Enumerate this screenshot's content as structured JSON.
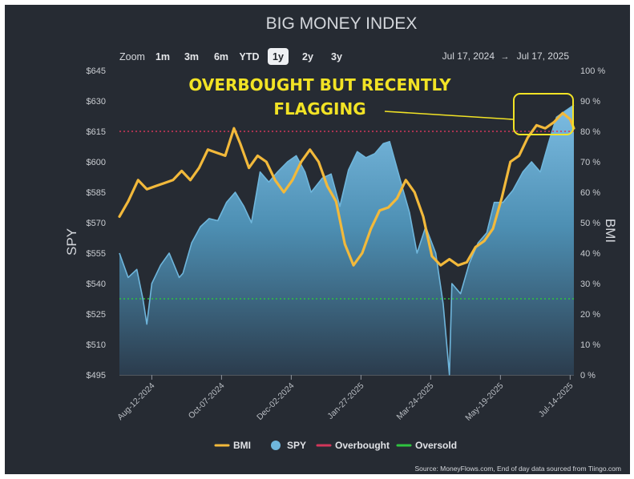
{
  "chart_data": {
    "type": "line",
    "title": "BIG MONEY INDEX",
    "zoom": {
      "label": "Zoom",
      "options": [
        "1m",
        "3m",
        "6m",
        "YTD",
        "1y",
        "2y",
        "3y"
      ],
      "selected": "1y"
    },
    "date_range": {
      "from": "Jul 17, 2024",
      "separator": "→",
      "to": "Jul 17, 2025"
    },
    "y_left": {
      "label": "SPY",
      "range": [
        495,
        645
      ],
      "ticks": [
        645,
        630,
        615,
        600,
        585,
        570,
        555,
        540,
        525,
        510,
        495
      ],
      "tick_labels": [
        "$645",
        "$630",
        "$615",
        "$600",
        "$585",
        "$570",
        "$555",
        "$540",
        "$525",
        "$510",
        "$495"
      ]
    },
    "y_right": {
      "label": "BMI",
      "range": [
        0,
        100
      ],
      "ticks": [
        100,
        90,
        80,
        70,
        60,
        50,
        40,
        30,
        20,
        10,
        0
      ],
      "tick_labels": [
        "100 %",
        "90 %",
        "80 %",
        "70 %",
        "60 %",
        "50 %",
        "40 %",
        "30 %",
        "20 %",
        "10 %",
        "0 %"
      ]
    },
    "x_ticks": [
      "Aug-12-2024",
      "Oct-07-2024",
      "Dec-02-2024",
      "Jan-27-2025",
      "Mar-24-2025",
      "May-19-2025",
      "Jul-14-2025"
    ],
    "thresholds": {
      "overbought": {
        "label": "Overbought",
        "value": 80,
        "color": "#d2365a"
      },
      "oversold": {
        "label": "Oversold",
        "value": 25,
        "color": "#2fc43f"
      }
    },
    "series": [
      {
        "name": "BMI",
        "axis": "right",
        "color": "#f2b93b",
        "x": [
          "2024-07-17",
          "2024-07-24",
          "2024-08-01",
          "2024-08-08",
          "2024-08-15",
          "2024-08-22",
          "2024-08-29",
          "2024-09-05",
          "2024-09-12",
          "2024-09-19",
          "2024-09-26",
          "2024-10-03",
          "2024-10-10",
          "2024-10-17",
          "2024-10-22",
          "2024-10-29",
          "2024-11-05",
          "2024-11-12",
          "2024-11-19",
          "2024-11-26",
          "2024-12-03",
          "2024-12-10",
          "2024-12-17",
          "2024-12-24",
          "2024-12-31",
          "2025-01-07",
          "2025-01-14",
          "2025-01-21",
          "2025-01-28",
          "2025-02-04",
          "2025-02-11",
          "2025-02-18",
          "2025-02-25",
          "2025-03-04",
          "2025-03-11",
          "2025-03-18",
          "2025-03-25",
          "2025-04-01",
          "2025-04-08",
          "2025-04-15",
          "2025-04-22",
          "2025-04-29",
          "2025-05-06",
          "2025-05-13",
          "2025-05-20",
          "2025-05-27",
          "2025-06-03",
          "2025-06-10",
          "2025-06-17",
          "2025-06-24",
          "2025-07-01",
          "2025-07-08",
          "2025-07-14",
          "2025-07-17"
        ],
        "values": [
          52,
          57,
          64,
          61,
          62,
          63,
          64,
          67,
          64,
          68,
          74,
          73,
          72,
          81,
          76,
          68,
          72,
          70,
          64,
          60,
          64,
          70,
          74,
          70,
          62,
          57,
          43,
          36,
          40,
          48,
          54,
          55,
          58,
          64,
          60,
          52,
          39,
          36,
          38,
          36,
          37,
          42,
          44,
          48,
          58,
          70,
          72,
          78,
          82,
          81,
          83,
          86,
          84,
          81
        ]
      },
      {
        "name": "SPY",
        "axis": "left",
        "color": "#6fb6dc",
        "x": [
          "2024-07-17",
          "2024-07-24",
          "2024-07-31",
          "2024-08-05",
          "2024-08-08",
          "2024-08-12",
          "2024-08-19",
          "2024-08-26",
          "2024-09-03",
          "2024-09-06",
          "2024-09-13",
          "2024-09-20",
          "2024-09-27",
          "2024-10-04",
          "2024-10-11",
          "2024-10-18",
          "2024-10-25",
          "2024-10-31",
          "2024-11-07",
          "2024-11-14",
          "2024-11-21",
          "2024-11-29",
          "2024-12-06",
          "2024-12-13",
          "2024-12-18",
          "2024-12-27",
          "2025-01-03",
          "2025-01-10",
          "2025-01-17",
          "2025-01-24",
          "2025-01-31",
          "2025-02-07",
          "2025-02-14",
          "2025-02-19",
          "2025-02-28",
          "2025-03-07",
          "2025-03-13",
          "2025-03-20",
          "2025-03-28",
          "2025-04-03",
          "2025-04-08",
          "2025-04-10",
          "2025-04-17",
          "2025-04-24",
          "2025-05-01",
          "2025-05-08",
          "2025-05-14",
          "2025-05-21",
          "2025-05-29",
          "2025-06-06",
          "2025-06-13",
          "2025-06-20",
          "2025-06-27",
          "2025-07-03",
          "2025-07-10",
          "2025-07-17"
        ],
        "values": [
          555,
          543,
          547,
          532,
          520,
          540,
          549,
          555,
          543,
          545,
          560,
          568,
          572,
          571,
          580,
          585,
          578,
          570,
          595,
          590,
          595,
          600,
          603,
          595,
          585,
          592,
          594,
          578,
          596,
          605,
          602,
          604,
          609,
          610,
          590,
          575,
          555,
          568,
          555,
          530,
          495,
          540,
          535,
          550,
          560,
          565,
          580,
          580,
          586,
          595,
          600,
          595,
          610,
          622,
          625,
          628
        ]
      }
    ],
    "annotation": {
      "text_line1": "OVERBOUGHT BUT RECENTLY",
      "text_line2": "FLAGGING",
      "color": "#f2e325"
    },
    "legend": {
      "placement": "bottom",
      "items": [
        {
          "label": "BMI",
          "color": "#f2b93b",
          "marker": "line"
        },
        {
          "label": "SPY",
          "color": "#6fb6dc",
          "marker": "circle"
        },
        {
          "label": "Overbought",
          "color": "#d2365a",
          "marker": "line"
        },
        {
          "label": "Oversold",
          "color": "#2fc43f",
          "marker": "line"
        }
      ]
    },
    "source": "Source: MoneyFlows.com, End of day data sourced from Tiingo.com"
  }
}
